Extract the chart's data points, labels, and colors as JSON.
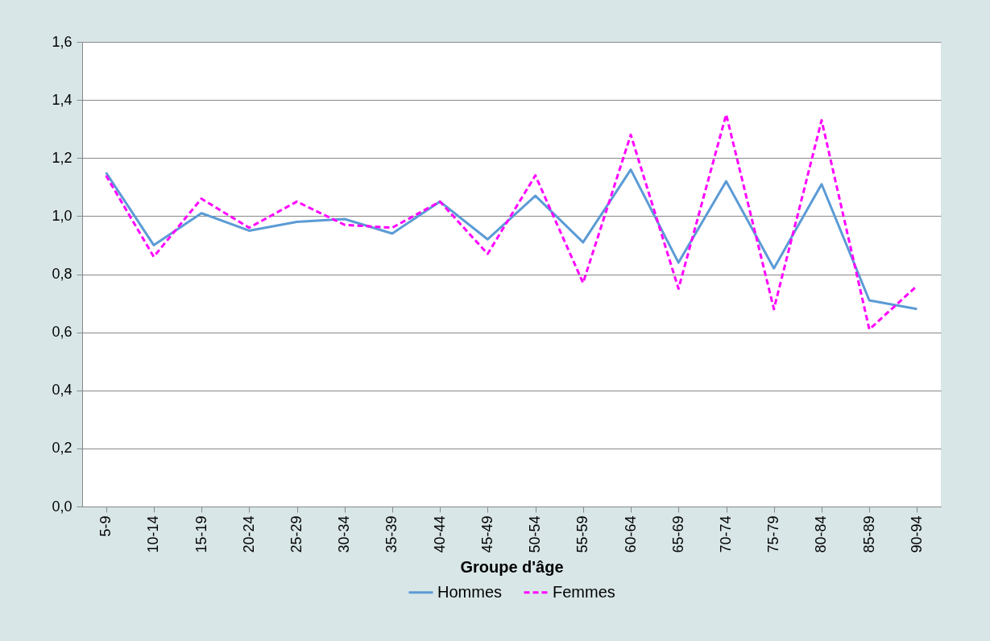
{
  "chart_data": {
    "type": "line",
    "xlabel": "Groupe d'âge",
    "categories": [
      "5-9",
      "10-14",
      "15-19",
      "20-24",
      "25-29",
      "30-34",
      "35-39",
      "40-44",
      "45-49",
      "50-54",
      "55-59",
      "60-64",
      "65-69",
      "70-74",
      "75-79",
      "80-84",
      "85-89",
      "90-94"
    ],
    "series": [
      {
        "name": "Hommes",
        "color": "#5b9bd5",
        "line_style": "solid",
        "values": [
          1.15,
          0.9,
          1.01,
          0.95,
          0.98,
          0.99,
          0.94,
          1.05,
          0.92,
          1.07,
          0.91,
          1.16,
          0.84,
          1.12,
          0.82,
          1.11,
          0.71,
          0.68
        ]
      },
      {
        "name": "Femmes",
        "color": "#ff00ff",
        "line_style": "dashed",
        "values": [
          1.14,
          0.86,
          1.06,
          0.96,
          1.05,
          0.97,
          0.96,
          1.05,
          0.87,
          1.14,
          0.77,
          1.28,
          0.75,
          1.35,
          0.68,
          1.33,
          0.61,
          0.76
        ]
      }
    ],
    "ylim": [
      0,
      1.6
    ],
    "yticks": [
      {
        "value": 0,
        "label": "0,0"
      },
      {
        "value": 0.2,
        "label": "0,2"
      },
      {
        "value": 0.4,
        "label": "0,4"
      },
      {
        "value": 0.6,
        "label": "0,6"
      },
      {
        "value": 0.8,
        "label": "0,8"
      },
      {
        "value": 1,
        "label": "1,0"
      },
      {
        "value": 1.2,
        "label": "1,2"
      },
      {
        "value": 1.4,
        "label": "1,4"
      },
      {
        "value": 1.6,
        "label": "1,6"
      }
    ],
    "grid": "y",
    "legend": "bottom",
    "marker": "none"
  }
}
